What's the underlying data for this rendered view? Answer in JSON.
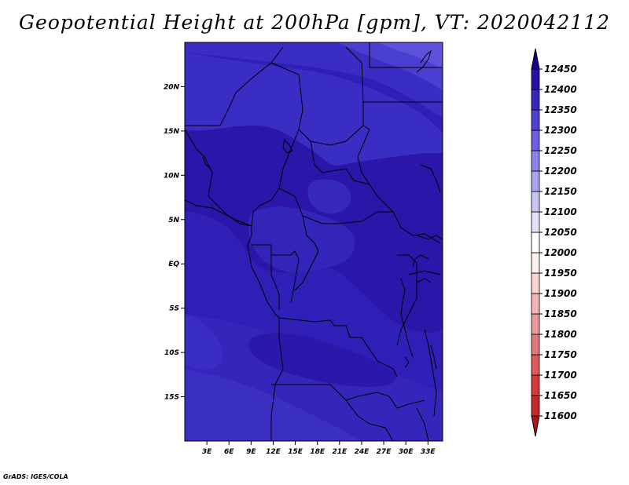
{
  "title": "Geopotential Height at 200hPa [gpm], VT: 2020042112",
  "credit": "GrADS: IGES/COLA",
  "chart_data": {
    "type": "heatmap",
    "title": "Geopotential Height at 200hPa [gpm], VT: 2020042112",
    "lon_range": [
      0,
      35
    ],
    "lat_range": [
      -20,
      25
    ],
    "lon_ticks": [
      "3E",
      "6E",
      "9E",
      "12E",
      "15E",
      "18E",
      "21E",
      "24E",
      "27E",
      "30E",
      "33E"
    ],
    "lon_tick_values": [
      3,
      6,
      9,
      12,
      15,
      18,
      21,
      24,
      27,
      30,
      33
    ],
    "lat_ticks": [
      "20N",
      "15N",
      "10N",
      "5N",
      "EQ",
      "5S",
      "10S",
      "15S"
    ],
    "lat_tick_values": [
      20,
      15,
      10,
      5,
      0,
      -5,
      -10,
      -15
    ],
    "colorbar": {
      "levels": [
        11600,
        11650,
        11700,
        11750,
        11800,
        11850,
        11900,
        11950,
        12000,
        12050,
        12100,
        12150,
        12200,
        12250,
        12300,
        12350,
        12400,
        12450
      ],
      "colors": [
        "#b01515",
        "#c42a2a",
        "#d63b3b",
        "#dc5a5a",
        "#e07a7a",
        "#eb9a9a",
        "#f2b4b4",
        "#f9d2d2",
        "#fff0f0",
        "#ffffff",
        "#e4e2fb",
        "#c8c4f6",
        "#aba4f0",
        "#8d82e8",
        "#6c5fde",
        "#4f41cf",
        "#3725bd",
        "#2612a8",
        "#1a0090"
      ]
    }
  }
}
